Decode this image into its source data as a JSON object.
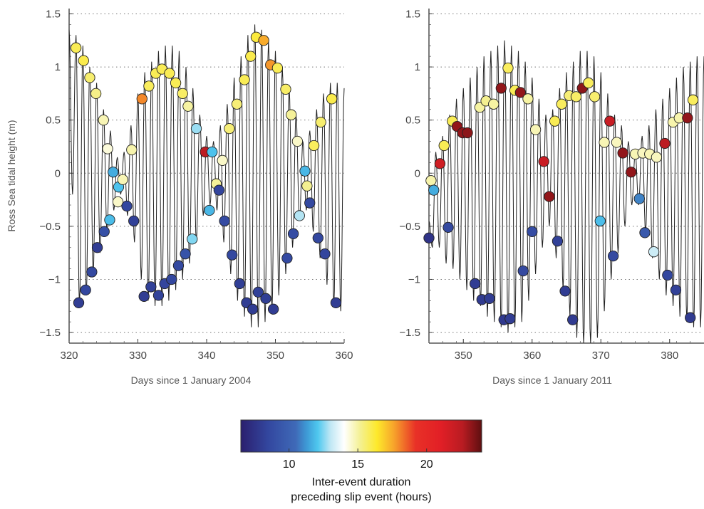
{
  "chart_data": [
    {
      "type": "line+scatter",
      "xlabel": "Days since 1 January 2004",
      "ylabel": "Ross Sea tidal height (m)",
      "xlim": [
        320,
        360
      ],
      "ylim": [
        -1.6,
        1.55
      ],
      "xticks": [
        320,
        330,
        340,
        350,
        360
      ],
      "yticks": [
        -1.5,
        -1,
        -0.5,
        0,
        0.5,
        1,
        1.5
      ],
      "ytick_labels": [
        "−1.5",
        "−1",
        "−0.5",
        "0",
        "0.5",
        "1",
        "1.5"
      ],
      "grid": "dotted horizontal",
      "points": [
        [
          321.0,
          1.18,
          15.9
        ],
        [
          321.4,
          -1.22,
          8.0
        ],
        [
          322.1,
          1.06,
          16.0
        ],
        [
          322.4,
          -1.1,
          8.5
        ],
        [
          323.0,
          0.9,
          15.6
        ],
        [
          323.3,
          -0.93,
          8.6
        ],
        [
          323.9,
          0.75,
          15.3
        ],
        [
          324.1,
          -0.7,
          8.0
        ],
        [
          325.0,
          0.5,
          14.8
        ],
        [
          325.1,
          -0.55,
          9.0
        ],
        [
          325.6,
          0.23,
          14.4
        ],
        [
          325.9,
          -0.44,
          11.9
        ],
        [
          326.4,
          0.01,
          11.6
        ],
        [
          327.1,
          -0.27,
          14.6
        ],
        [
          327.2,
          -0.13,
          12.0
        ],
        [
          327.8,
          -0.06,
          14.8
        ],
        [
          328.4,
          -0.31,
          8.5
        ],
        [
          329.1,
          0.22,
          14.9
        ],
        [
          329.4,
          -0.45,
          8.2
        ],
        [
          330.6,
          0.7,
          18.0
        ],
        [
          330.9,
          -1.16,
          8.0
        ],
        [
          331.6,
          0.82,
          15.8
        ],
        [
          331.9,
          -1.07,
          8.2
        ],
        [
          332.6,
          0.94,
          15.9
        ],
        [
          333.0,
          -1.15,
          8.3
        ],
        [
          333.5,
          0.98,
          15.9
        ],
        [
          333.9,
          -1.04,
          8.4
        ],
        [
          334.6,
          0.94,
          15.9
        ],
        [
          334.9,
          -1.0,
          8.5
        ],
        [
          335.5,
          0.85,
          15.9
        ],
        [
          335.9,
          -0.87,
          8.6
        ],
        [
          336.5,
          0.75,
          15.7
        ],
        [
          336.9,
          -0.76,
          9.2
        ],
        [
          337.3,
          0.63,
          15.0
        ],
        [
          337.9,
          -0.62,
          12.5
        ],
        [
          338.5,
          0.42,
          12.7
        ],
        [
          339.8,
          0.2,
          22.5
        ],
        [
          340.4,
          -0.35,
          11.8
        ],
        [
          340.8,
          0.2,
          12.0
        ],
        [
          341.4,
          -0.1,
          15.1
        ],
        [
          341.8,
          -0.16,
          8.4
        ],
        [
          342.3,
          0.12,
          14.6
        ],
        [
          342.6,
          -0.45,
          8.7
        ],
        [
          343.3,
          0.42,
          15.5
        ],
        [
          343.7,
          -0.77,
          8.6
        ],
        [
          344.4,
          0.65,
          15.5
        ],
        [
          344.8,
          -1.04,
          8.1
        ],
        [
          345.5,
          0.88,
          15.9
        ],
        [
          345.8,
          -1.22,
          8.0
        ],
        [
          346.4,
          1.1,
          16.0
        ],
        [
          346.7,
          -1.28,
          8.0
        ],
        [
          347.2,
          1.28,
          16.2
        ],
        [
          347.5,
          -1.12,
          8.2
        ],
        [
          348.3,
          1.25,
          17.5
        ],
        [
          348.6,
          -1.18,
          8.1
        ],
        [
          349.3,
          1.02,
          17.8
        ],
        [
          349.7,
          -1.28,
          8.0
        ],
        [
          350.3,
          0.99,
          15.9
        ],
        [
          351.5,
          0.79,
          15.7
        ],
        [
          351.7,
          -0.8,
          8.7
        ],
        [
          352.3,
          0.55,
          15.1
        ],
        [
          352.6,
          -0.57,
          8.8
        ],
        [
          353.2,
          0.3,
          14.6
        ],
        [
          353.5,
          -0.4,
          12.9
        ],
        [
          354.3,
          0.02,
          11.8
        ],
        [
          354.6,
          -0.12,
          15.2
        ],
        [
          355.0,
          -0.28,
          8.6
        ],
        [
          355.6,
          0.26,
          15.8
        ],
        [
          356.2,
          -0.61,
          8.5
        ],
        [
          356.6,
          0.48,
          15.6
        ],
        [
          357.2,
          -0.76,
          8.4
        ],
        [
          358.2,
          0.7,
          16.0
        ],
        [
          358.8,
          -1.22,
          8.0
        ]
      ]
    },
    {
      "type": "line+scatter",
      "xlabel": "Days since 1 January 2011",
      "xlim": [
        345,
        385
      ],
      "ylim": [
        -1.6,
        1.55
      ],
      "xticks": [
        350,
        360,
        370,
        380
      ],
      "yticks": [
        -1.5,
        -1,
        -0.5,
        0,
        0.5,
        1,
        1.5
      ],
      "ytick_labels": [
        "−1.5",
        "−1",
        "−0.5",
        "0",
        "0.5",
        "1",
        "1.5"
      ],
      "grid": "dotted horizontal",
      "points": [
        [
          345.0,
          -0.61,
          7.5
        ],
        [
          345.3,
          -0.07,
          14.9
        ],
        [
          345.7,
          -0.16,
          11.6
        ],
        [
          346.6,
          0.09,
          21.8
        ],
        [
          347.2,
          0.26,
          15.9
        ],
        [
          347.8,
          -0.51,
          8.6
        ],
        [
          348.4,
          0.49,
          15.9
        ],
        [
          349.1,
          0.44,
          23.2
        ],
        [
          349.9,
          0.38,
          23.2
        ],
        [
          350.6,
          0.38,
          23.3
        ],
        [
          351.7,
          -1.04,
          8.0
        ],
        [
          352.4,
          0.62,
          15.0
        ],
        [
          352.7,
          -1.19,
          7.9
        ],
        [
          353.3,
          0.68,
          15.2
        ],
        [
          353.8,
          -1.18,
          8.0
        ],
        [
          354.4,
          0.65,
          15.0
        ],
        [
          355.5,
          0.8,
          23.2
        ],
        [
          355.9,
          -1.38,
          7.8
        ],
        [
          356.5,
          0.99,
          15.8
        ],
        [
          356.8,
          -1.37,
          8.0
        ],
        [
          357.5,
          0.78,
          15.9
        ],
        [
          358.3,
          0.76,
          23.2
        ],
        [
          358.7,
          -0.92,
          8.6
        ],
        [
          359.4,
          0.7,
          15.0
        ],
        [
          360.0,
          -0.55,
          8.8
        ],
        [
          360.5,
          0.41,
          14.8
        ],
        [
          361.7,
          0.11,
          22.0
        ],
        [
          362.5,
          -0.22,
          23.2
        ],
        [
          363.3,
          0.49,
          15.9
        ],
        [
          363.7,
          -0.64,
          8.2
        ],
        [
          364.3,
          0.65,
          15.8
        ],
        [
          364.8,
          -1.11,
          8.0
        ],
        [
          365.4,
          0.73,
          15.5
        ],
        [
          365.9,
          -1.38,
          7.9
        ],
        [
          366.4,
          0.72,
          15.7
        ],
        [
          367.3,
          0.8,
          23.3
        ],
        [
          368.2,
          0.85,
          15.8
        ],
        [
          369.1,
          0.72,
          15.6
        ],
        [
          369.9,
          -0.45,
          11.9
        ],
        [
          370.5,
          0.29,
          14.8
        ],
        [
          371.3,
          0.49,
          22.0
        ],
        [
          371.8,
          -0.78,
          8.6
        ],
        [
          372.3,
          0.29,
          14.7
        ],
        [
          373.2,
          0.19,
          23.2
        ],
        [
          374.4,
          0.01,
          23.2
        ],
        [
          375.0,
          0.18,
          14.8
        ],
        [
          375.6,
          -0.24,
          10.9
        ],
        [
          376.1,
          0.19,
          14.7
        ],
        [
          376.4,
          -0.56,
          9.5
        ],
        [
          377.1,
          0.18,
          14.8
        ],
        [
          377.7,
          -0.74,
          13.2
        ],
        [
          378.1,
          0.15,
          14.7
        ],
        [
          379.3,
          0.28,
          22.5
        ],
        [
          379.7,
          -0.96,
          8.5
        ],
        [
          380.5,
          0.48,
          14.9
        ],
        [
          380.9,
          -1.1,
          8.2
        ],
        [
          381.4,
          0.52,
          14.9
        ],
        [
          382.6,
          0.52,
          23.2
        ],
        [
          383.0,
          -1.36,
          7.9
        ],
        [
          383.4,
          0.69,
          15.8
        ],
        [
          384.3,
          0.78,
          23.3
        ],
        [
          384.9,
          -1.34,
          7.9
        ]
      ]
    },
    {
      "type": "colorbar",
      "range": [
        6.5,
        24
      ],
      "ticks": [
        10,
        15,
        20
      ],
      "title_lines": [
        "Inter-event duration",
        "preceding slip event (hours)"
      ],
      "colors": [
        [
          6.5,
          "#2b1f6e"
        ],
        [
          8.5,
          "#33479f"
        ],
        [
          10.5,
          "#3f6ab8"
        ],
        [
          11.3,
          "#3e9bd6"
        ],
        [
          12.1,
          "#4fc8ef"
        ],
        [
          13.0,
          "#bfe7f4"
        ],
        [
          14.0,
          "#ffffff"
        ],
        [
          15.2,
          "#f4f090"
        ],
        [
          16.4,
          "#fde92b"
        ],
        [
          17.6,
          "#f7a52b"
        ],
        [
          19.2,
          "#e83127"
        ],
        [
          21.0,
          "#e21f26"
        ],
        [
          22.6,
          "#b91c22"
        ],
        [
          24.0,
          "#5e0f10"
        ]
      ]
    }
  ]
}
